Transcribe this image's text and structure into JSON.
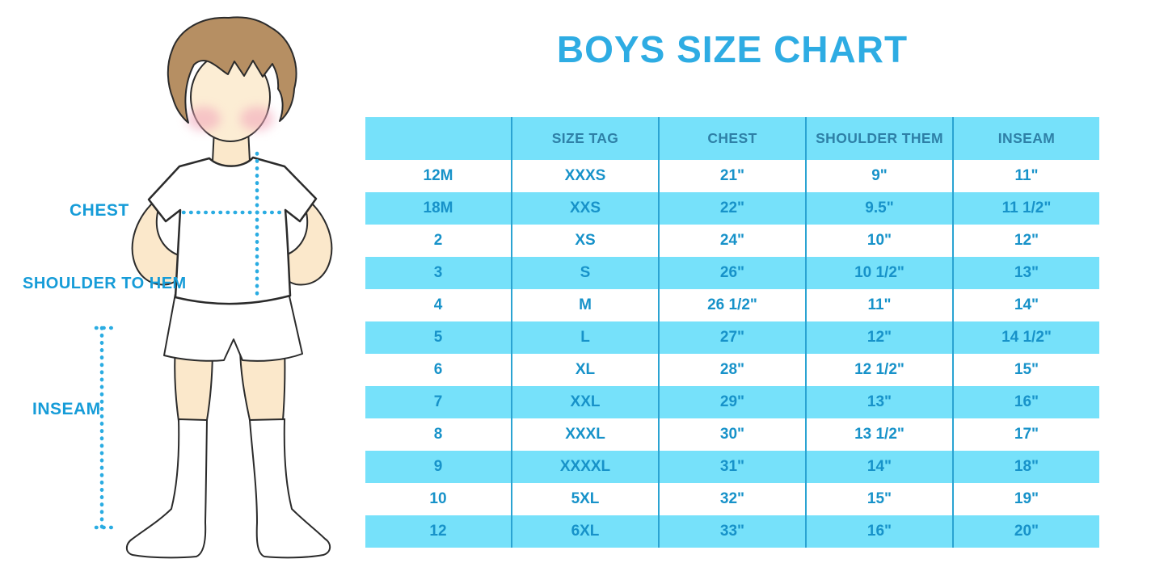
{
  "title": "BOYS SIZE CHART",
  "figure": {
    "illustration": "boy-in-white-t-shirt-shorts-and-knee-socks",
    "chest_label": "CHEST",
    "shoulder_label": "SHOULDER TO HEM",
    "inseam_label": "INSEAM"
  },
  "colors": {
    "title_blue": "#2EACE3",
    "label_blue": "#169CD8",
    "row_light_blue": "#76E1FA",
    "row_white": "#FFFFFF",
    "cell_text_blue": "#1792C9",
    "header_text_blue": "#2E80A7",
    "column_line_blue": "#2AA3D2",
    "dotted_line_blue": "#2AACE2",
    "skin": "#FBE8CB",
    "hair_brown": "#B68F63",
    "blush_pink": "#F2A9BC",
    "outline_dark": "#2B2B2B"
  },
  "chart_data": {
    "type": "table",
    "title": "BOYS SIZE CHART",
    "columns": [
      "",
      "SIZE TAG",
      "CHEST",
      "SHOULDER THEM",
      "INSEAM"
    ],
    "rows": [
      [
        "12M",
        "XXXS",
        "21\"",
        "9\"",
        "11\""
      ],
      [
        "18M",
        "XXS",
        "22\"",
        "9.5\"",
        "11 1/2\""
      ],
      [
        "2",
        "XS",
        "24\"",
        "10\"",
        "12\""
      ],
      [
        "3",
        "S",
        "26\"",
        "10 1/2\"",
        "13\""
      ],
      [
        "4",
        "M",
        "26 1/2\"",
        "11\"",
        "14\""
      ],
      [
        "5",
        "L",
        "27\"",
        "12\"",
        "14 1/2\""
      ],
      [
        "6",
        "XL",
        "28\"",
        "12 1/2\"",
        "15\""
      ],
      [
        "7",
        "XXL",
        "29\"",
        "13\"",
        "16\""
      ],
      [
        "8",
        "XXXL",
        "30\"",
        "13 1/2\"",
        "17\""
      ],
      [
        "9",
        "XXXXL",
        "31\"",
        "14\"",
        "18\""
      ],
      [
        "10",
        "5XL",
        "32\"",
        "15\"",
        "19\""
      ],
      [
        "12",
        "6XL",
        "33\"",
        "16\"",
        "20\""
      ]
    ],
    "row_striping": "rows alternate white and light blue starting with white",
    "grid": "vertical column separator lines only",
    "legend_position": "none"
  }
}
